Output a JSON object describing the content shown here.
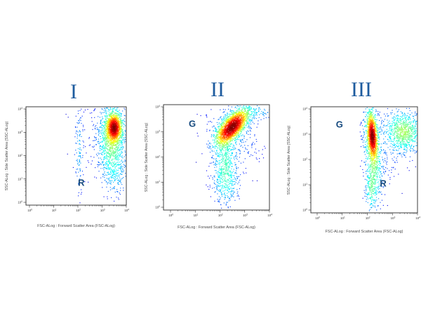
{
  "figure": {
    "type": "flow-cytometry-density-plots",
    "background": "#ffffff",
    "title_color": "#1d5b9e",
    "gate_label_color": "#15497e",
    "axis_text_color": "#4a4a4a",
    "frame_color": "#2a2a2a",
    "panel_labels": [
      "I",
      "II",
      "III"
    ]
  },
  "chart_data": [
    {
      "type": "scatter",
      "subtype": "flow-cytometry-density",
      "title": "I",
      "xlabel": "FSC-ALog : Forward Scatter Area (FSC-ALog)",
      "ylabel": "SSC-ALog : Side Scatter Area (SSC-ALog)",
      "x_scale": "log10",
      "y_scale": "log10",
      "xlim": [
        1,
        10000
      ],
      "ylim": [
        1,
        10000
      ],
      "x_ticks": [
        "10^0",
        "10^1",
        "10^2",
        "10^3",
        "10^4"
      ],
      "y_ticks": [
        "10^0",
        "10^1",
        "10^2",
        "10^3",
        "10^4"
      ],
      "grid": false,
      "colormap": "jet (blue = low event density, red = high)",
      "gates": [
        {
          "label": "R",
          "x_log10": 2.14,
          "y_log10": 0.84
        }
      ],
      "clusters": [
        {
          "name": "dense-core",
          "cx_log10": 3.5,
          "cy_log10": 3.2,
          "sigma_x": 0.16,
          "sigma_y": 0.3,
          "angle_deg": 0,
          "count": 1050
        },
        {
          "name": "main-halo",
          "cx_log10": 3.4,
          "cy_log10": 2.7,
          "sigma_x": 0.28,
          "sigma_y": 0.8,
          "angle_deg": 0,
          "count": 1250
        },
        {
          "name": "lower-sparse",
          "cx_log10": 3.55,
          "cy_log10": 1.15,
          "sigma_x": 0.28,
          "sigma_y": 0.5,
          "angle_deg": 0,
          "count": 170
        },
        {
          "name": "left-column",
          "cx_log10": 2.05,
          "cy_log10": 2.2,
          "sigma_x": 0.09,
          "sigma_y": 0.95,
          "angle_deg": 0,
          "count": 110
        },
        {
          "name": "background-scatter",
          "cx_log10": 3.0,
          "cy_log10": 2.7,
          "sigma_x": 0.7,
          "sigma_y": 1.0,
          "angle_deg": 0,
          "count": 120
        }
      ]
    },
    {
      "type": "scatter",
      "subtype": "flow-cytometry-density",
      "title": "II",
      "xlabel": "FSC-ALog : Forward Scatter Area (FSC-ALog)",
      "ylabel": "SSC-ALog : Side Scatter Area (SSC-ALog)",
      "x_scale": "log10",
      "y_scale": "log10",
      "xlim": [
        1,
        10000
      ],
      "ylim": [
        1,
        10000
      ],
      "x_ticks": [
        "10^0",
        "10^1",
        "10^2",
        "10^3",
        "10^4"
      ],
      "y_ticks": [
        "10^0",
        "10^1",
        "10^2",
        "10^3",
        "10^4"
      ],
      "grid": false,
      "colormap": "jet (blue = low event density, red = high)",
      "gates": [
        {
          "label": "G",
          "x_log10": 0.88,
          "y_log10": 3.33
        }
      ],
      "clusters": [
        {
          "name": "main-diagonal-blob",
          "cx_log10": 2.5,
          "cy_log10": 3.2,
          "sigma_x": 0.45,
          "sigma_y": 0.2,
          "angle_deg": 48,
          "count": 2200
        },
        {
          "name": "lower-tail",
          "cx_log10": 2.2,
          "cy_log10": 1.7,
          "sigma_x": 0.24,
          "sigma_y": 0.75,
          "angle_deg": 0,
          "count": 600
        },
        {
          "name": "halo",
          "cx_log10": 2.55,
          "cy_log10": 2.9,
          "sigma_x": 0.55,
          "sigma_y": 0.75,
          "angle_deg": 30,
          "count": 280
        },
        {
          "name": "bottom-sparse",
          "cx_log10": 2.3,
          "cy_log10": 0.9,
          "sigma_x": 0.3,
          "sigma_y": 0.4,
          "angle_deg": 0,
          "count": 130
        },
        {
          "name": "top-right-sparse",
          "cx_log10": 3.55,
          "cy_log10": 3.8,
          "sigma_x": 0.35,
          "sigma_y": 0.18,
          "angle_deg": 0,
          "count": 80
        }
      ]
    },
    {
      "type": "scatter",
      "subtype": "flow-cytometry-density",
      "title": "III",
      "xlabel": "FSC-ALog : Forward Scatter Area (FSC-ALog)",
      "ylabel": "SSC-ALog : Side Scatter Area (SSC-ALog)",
      "x_scale": "log10",
      "y_scale": "log10",
      "xlim": [
        1,
        10000
      ],
      "ylim": [
        1,
        10000
      ],
      "x_ticks": [
        "10^0",
        "10^1",
        "10^2",
        "10^3",
        "10^4"
      ],
      "y_ticks": [
        "10^0",
        "10^1",
        "10^2",
        "10^3",
        "10^4"
      ],
      "grid": false,
      "colormap": "jet (blue = low event density, red = high)",
      "gates": [
        {
          "label": "G",
          "x_log10": 0.89,
          "y_log10": 3.39
        },
        {
          "label": "R",
          "x_log10": 2.63,
          "y_log10": 1.06
        }
      ],
      "clusters": [
        {
          "name": "band-core",
          "cx_log10": 2.2,
          "cy_log10": 2.95,
          "sigma_x": 0.1,
          "sigma_y": 0.45,
          "angle_deg": 4,
          "count": 950
        },
        {
          "name": "band-halo",
          "cx_log10": 2.22,
          "cy_log10": 2.3,
          "sigma_x": 0.17,
          "sigma_y": 0.95,
          "angle_deg": 4,
          "count": 850
        },
        {
          "name": "bottom-tail",
          "cx_log10": 2.15,
          "cy_log10": 0.8,
          "sigma_x": 0.12,
          "sigma_y": 0.45,
          "angle_deg": 0,
          "count": 180
        },
        {
          "name": "right-diffuse-cluster",
          "cx_log10": 3.45,
          "cy_log10": 3.1,
          "sigma_x": 0.38,
          "sigma_y": 0.42,
          "angle_deg": 15,
          "count": 900
        },
        {
          "name": "bridge-sparse",
          "cx_log10": 2.8,
          "cy_log10": 2.4,
          "sigma_x": 0.4,
          "sigma_y": 0.8,
          "angle_deg": 0,
          "count": 120
        }
      ]
    }
  ]
}
